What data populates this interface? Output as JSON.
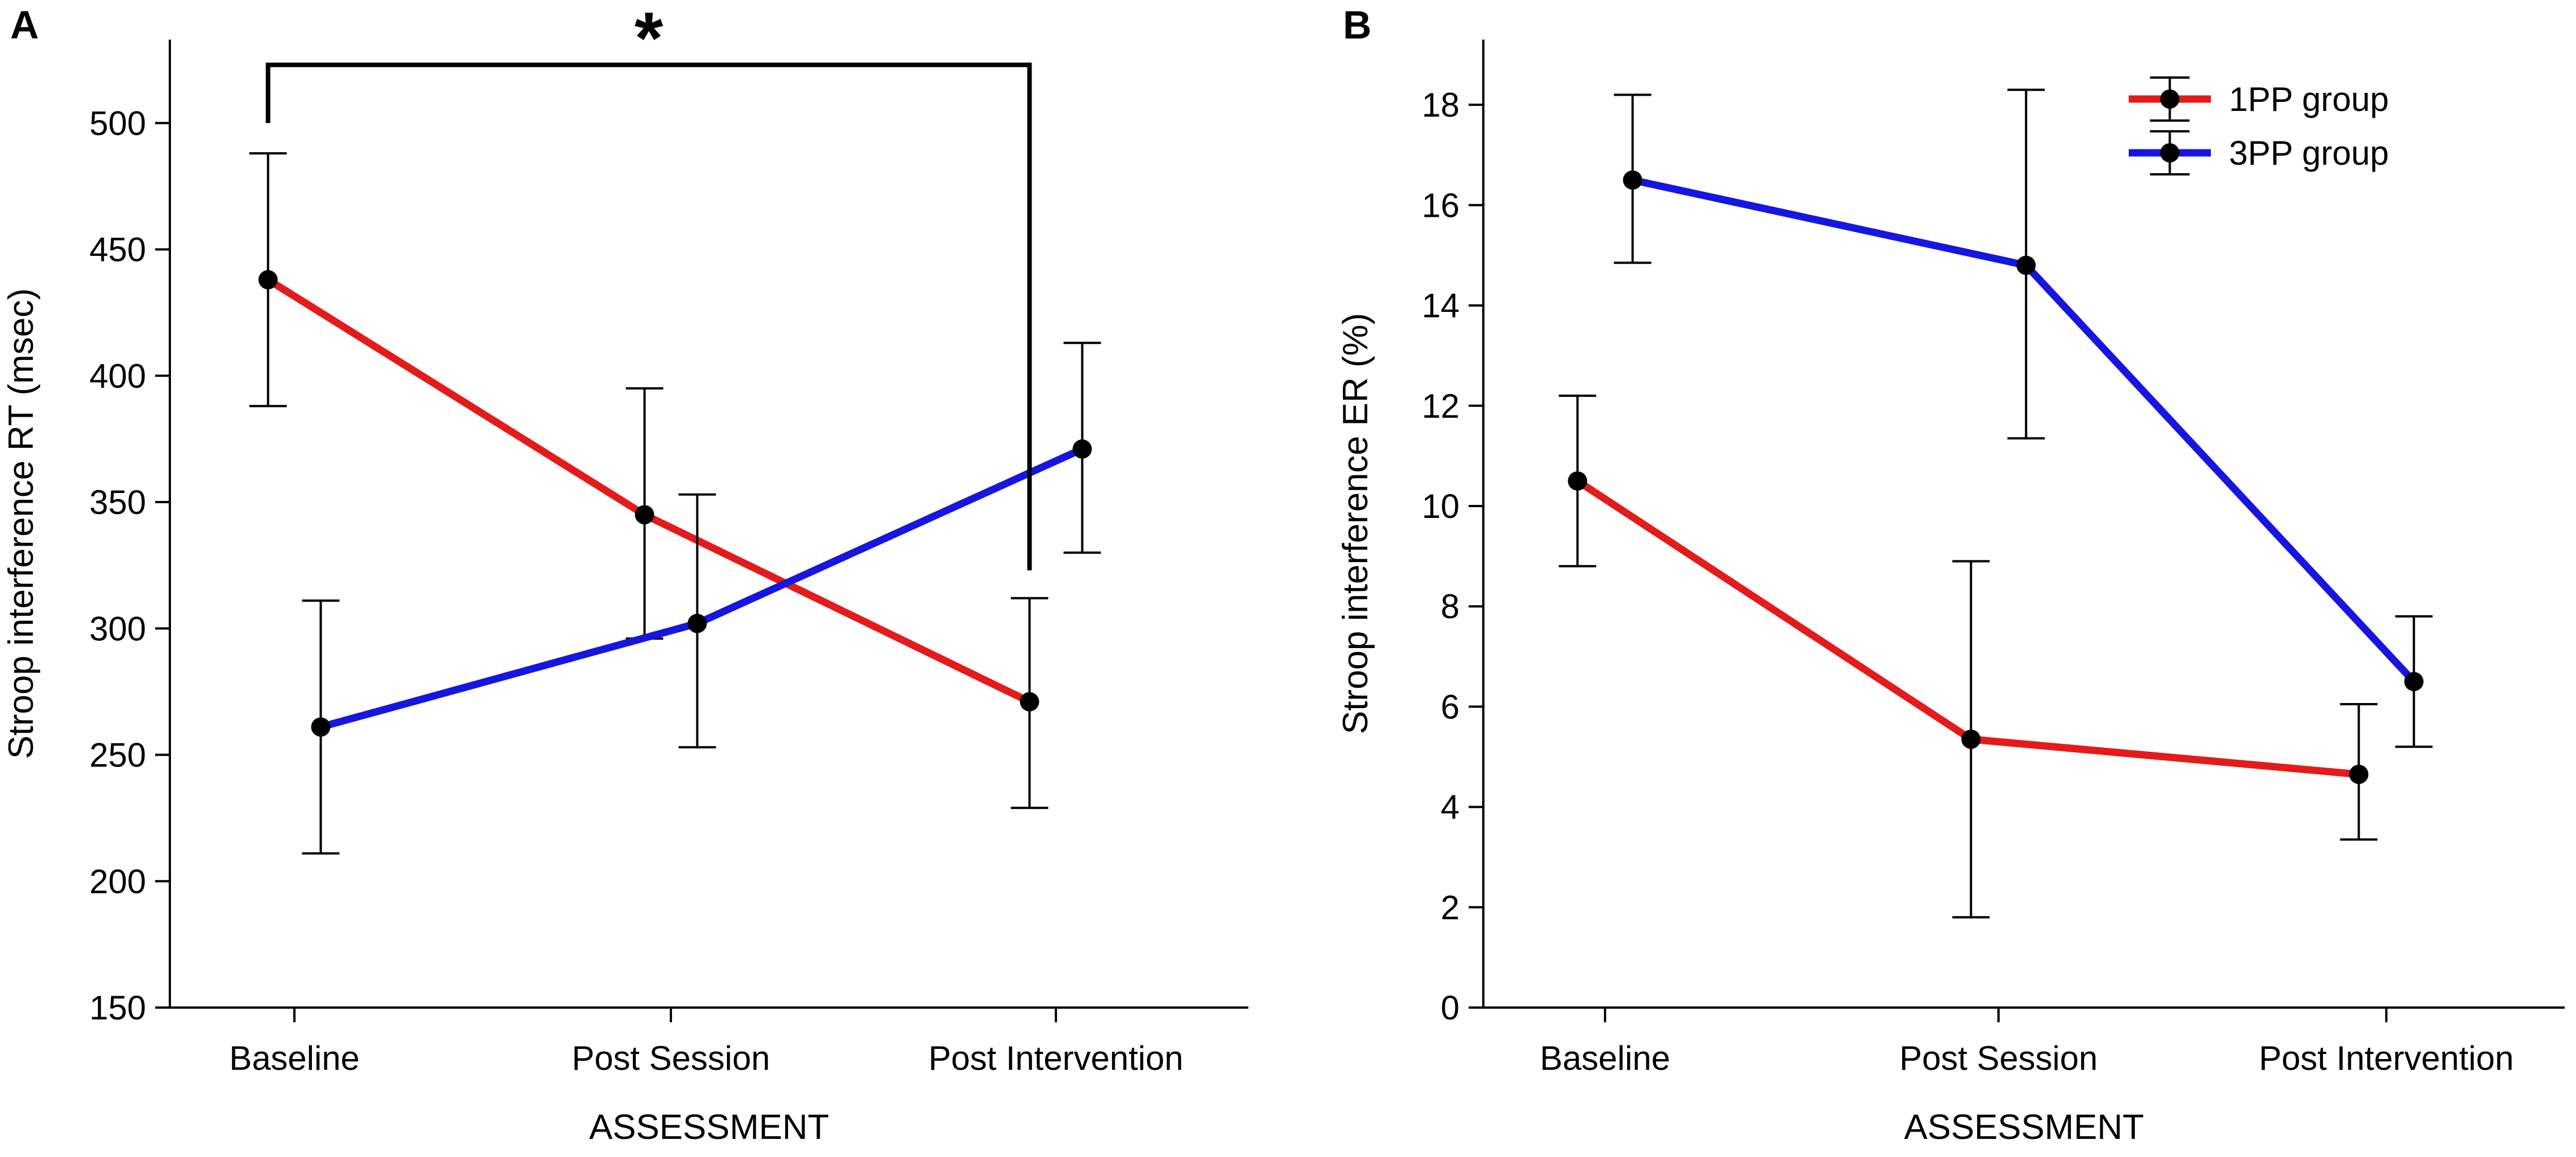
{
  "colors": {
    "group1": "#e31b1b",
    "group2": "#1616e0",
    "marker": "#000000",
    "errorbar": "#000000"
  },
  "chart_data": [
    {
      "panel": "A",
      "type": "line",
      "xlabel": "ASSESSMENT",
      "ylabel": "Stroop interference RT (msec)",
      "categories": [
        "Baseline",
        "Post Session",
        "Post Intervention"
      ],
      "ylim": [
        150,
        533
      ],
      "yticks": [
        150,
        200,
        250,
        300,
        350,
        400,
        450,
        500
      ],
      "series": [
        {
          "name": "1PP group",
          "color": "#e31b1b",
          "values": [
            438,
            345,
            271
          ],
          "error_low": [
            388,
            296,
            229
          ],
          "error_high": [
            488,
            395,
            312
          ],
          "offset": -0.07
        },
        {
          "name": "3PP group",
          "color": "#1616e0",
          "values": [
            261,
            302,
            371
          ],
          "error_low": [
            211,
            253,
            330
          ],
          "error_high": [
            311,
            353,
            413
          ],
          "offset": 0.07
        }
      ],
      "significance": {
        "label": "*",
        "from_category": 0,
        "to_category": 2,
        "from_value": 500,
        "to_value": 323,
        "bar_value": 523
      }
    },
    {
      "panel": "B",
      "type": "line",
      "xlabel": "ASSESSMENT",
      "ylabel": "Stroop interference ER (%)",
      "categories": [
        "Baseline",
        "Post Session",
        "Post Intervention"
      ],
      "ylim": [
        0,
        19.3
      ],
      "yticks": [
        0,
        2,
        4,
        6,
        8,
        10,
        12,
        14,
        16,
        18
      ],
      "legend": {
        "position": "top-right",
        "entries": [
          "1PP group",
          "3PP group"
        ]
      },
      "series": [
        {
          "name": "1PP group",
          "color": "#e31b1b",
          "values": [
            10.5,
            5.35,
            4.65
          ],
          "error_low": [
            8.8,
            1.8,
            3.35
          ],
          "error_high": [
            12.2,
            8.9,
            6.05
          ],
          "offset": -0.07
        },
        {
          "name": "3PP group",
          "color": "#1616e0",
          "values": [
            16.5,
            14.8,
            6.5
          ],
          "error_low": [
            14.85,
            11.35,
            5.2
          ],
          "error_high": [
            18.2,
            18.3,
            7.8
          ],
          "offset": 0.07
        }
      ]
    }
  ]
}
